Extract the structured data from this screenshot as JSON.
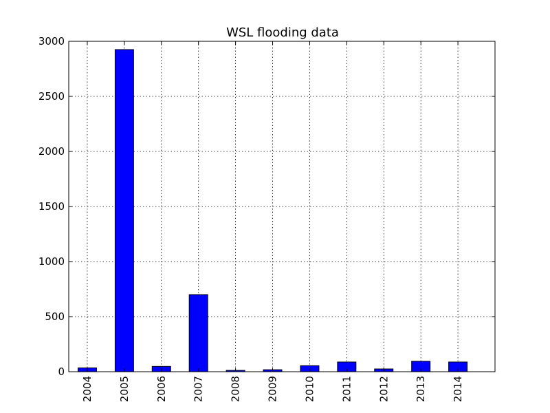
{
  "chart_data": {
    "type": "bar",
    "title": "WSL flooding data",
    "xlabel": "",
    "ylabel": "",
    "categories": [
      "2004",
      "2005",
      "2006",
      "2007",
      "2008",
      "2009",
      "2010",
      "2011",
      "2012",
      "2013",
      "2014"
    ],
    "values": [
      35,
      2925,
      48,
      700,
      12,
      18,
      55,
      88,
      25,
      95,
      88
    ],
    "ylim": [
      0,
      3000
    ],
    "yticks": [
      0,
      500,
      1000,
      1500,
      2000,
      2500,
      3000
    ],
    "grid": true,
    "bar_color": "#0000ff",
    "tick_label_rotation_x": "vertical"
  }
}
